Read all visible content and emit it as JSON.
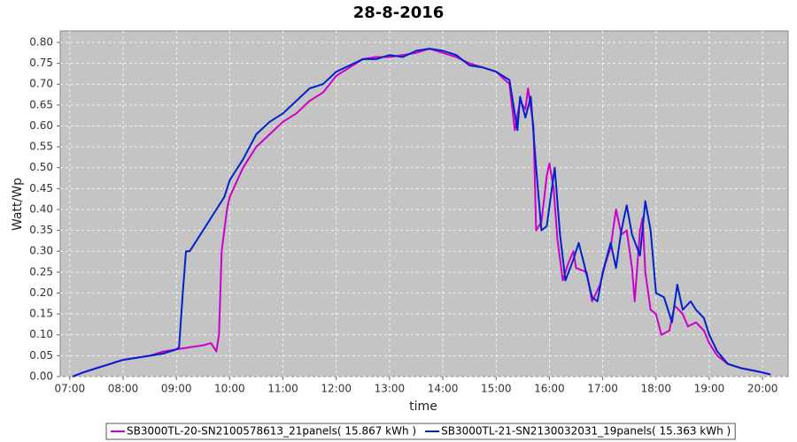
{
  "chart_data": {
    "type": "line",
    "title": "28-8-2016",
    "x_label": "time",
    "y_label": "Watt/Wp",
    "xlim": [
      6.82,
      20.48
    ],
    "ylim": [
      0,
      0.8275
    ],
    "xticks": [
      {
        "value": 7,
        "label": "07:00"
      },
      {
        "value": 8,
        "label": "08:00"
      },
      {
        "value": 9,
        "label": "09:00"
      },
      {
        "value": 10,
        "label": "10:00"
      },
      {
        "value": 11,
        "label": "11:00"
      },
      {
        "value": 12,
        "label": "12:00"
      },
      {
        "value": 13,
        "label": "13:00"
      },
      {
        "value": 14,
        "label": "14:00"
      },
      {
        "value": 15,
        "label": "15:00"
      },
      {
        "value": 16,
        "label": "16:00"
      },
      {
        "value": 17,
        "label": "17:00"
      },
      {
        "value": 18,
        "label": "18:00"
      },
      {
        "value": 19,
        "label": "19:00"
      },
      {
        "value": 20,
        "label": "20:00"
      }
    ],
    "yticks": [
      {
        "value": 0,
        "label": "0.00"
      },
      {
        "value": 0.05,
        "label": "0.05"
      },
      {
        "value": 0.1,
        "label": "0.10"
      },
      {
        "value": 0.15,
        "label": "0.15"
      },
      {
        "value": 0.2,
        "label": "0.20"
      },
      {
        "value": 0.25,
        "label": "0.25"
      },
      {
        "value": 0.3,
        "label": "0.30"
      },
      {
        "value": 0.35,
        "label": "0.35"
      },
      {
        "value": 0.4,
        "label": "0.40"
      },
      {
        "value": 0.45,
        "label": "0.45"
      },
      {
        "value": 0.5,
        "label": "0.50"
      },
      {
        "value": 0.55,
        "label": "0.55"
      },
      {
        "value": 0.6,
        "label": "0.60"
      },
      {
        "value": 0.65,
        "label": "0.65"
      },
      {
        "value": 0.7,
        "label": "0.70"
      },
      {
        "value": 0.75,
        "label": "0.75"
      },
      {
        "value": 0.8,
        "label": "0.80"
      }
    ],
    "grid": true,
    "legend": "bottom",
    "series": [
      {
        "name": "SB3000TL-20-SN2100578613_21panels( 15.867 kWh )",
        "color": "#cc00cc",
        "x": [
          7.05,
          7.25,
          7.5,
          7.75,
          8.0,
          8.25,
          8.5,
          8.75,
          9.0,
          9.25,
          9.5,
          9.65,
          9.75,
          9.8,
          9.85,
          9.95,
          10.0,
          10.25,
          10.5,
          10.75,
          11.0,
          11.25,
          11.5,
          11.75,
          12.0,
          12.25,
          12.5,
          12.75,
          13.0,
          13.25,
          13.5,
          13.75,
          14.0,
          14.25,
          14.5,
          14.75,
          15.0,
          15.25,
          15.35,
          15.45,
          15.55,
          15.6,
          15.7,
          15.75,
          15.85,
          15.95,
          16.0,
          16.08,
          16.15,
          16.25,
          16.35,
          16.45,
          16.5,
          16.7,
          16.8,
          16.95,
          17.05,
          17.15,
          17.25,
          17.35,
          17.45,
          17.55,
          17.6,
          17.7,
          17.75,
          17.8,
          17.9,
          18.0,
          18.1,
          18.25,
          18.35,
          18.5,
          18.6,
          18.75,
          18.9,
          19.0,
          19.15,
          19.35,
          19.6,
          19.8,
          20.0,
          20.15
        ],
        "values": [
          0.0,
          0.01,
          0.02,
          0.03,
          0.04,
          0.045,
          0.05,
          0.06,
          0.065,
          0.07,
          0.075,
          0.08,
          0.06,
          0.1,
          0.3,
          0.4,
          0.43,
          0.5,
          0.55,
          0.58,
          0.61,
          0.63,
          0.66,
          0.68,
          0.72,
          0.74,
          0.76,
          0.765,
          0.765,
          0.77,
          0.775,
          0.785,
          0.775,
          0.765,
          0.75,
          0.74,
          0.73,
          0.7,
          0.59,
          0.66,
          0.64,
          0.69,
          0.6,
          0.35,
          0.37,
          0.48,
          0.51,
          0.45,
          0.33,
          0.23,
          0.27,
          0.3,
          0.26,
          0.25,
          0.18,
          0.22,
          0.27,
          0.31,
          0.4,
          0.34,
          0.35,
          0.26,
          0.18,
          0.35,
          0.38,
          0.25,
          0.16,
          0.15,
          0.1,
          0.11,
          0.17,
          0.15,
          0.12,
          0.13,
          0.11,
          0.08,
          0.05,
          0.03,
          0.02,
          0.015,
          0.01,
          0.005
        ]
      },
      {
        "name": "SB3000TL-21-SN2130032031_19panels( 15.363 kWh )",
        "color": "#0022cc",
        "x": [
          7.05,
          7.25,
          7.5,
          7.75,
          8.0,
          8.25,
          8.5,
          8.75,
          9.0,
          9.05,
          9.12,
          9.18,
          9.25,
          9.4,
          9.6,
          9.75,
          9.9,
          10.0,
          10.25,
          10.5,
          10.75,
          11.0,
          11.25,
          11.5,
          11.75,
          12.0,
          12.25,
          12.5,
          12.75,
          13.0,
          13.25,
          13.5,
          13.75,
          14.0,
          14.25,
          14.5,
          14.75,
          15.0,
          15.25,
          15.4,
          15.45,
          15.55,
          15.65,
          15.75,
          15.85,
          15.95,
          16.1,
          16.2,
          16.3,
          16.45,
          16.55,
          16.65,
          16.8,
          16.9,
          17.0,
          17.15,
          17.25,
          17.35,
          17.45,
          17.55,
          17.7,
          17.8,
          17.9,
          18.0,
          18.15,
          18.3,
          18.4,
          18.5,
          18.65,
          18.75,
          18.9,
          19.0,
          19.15,
          19.35,
          19.6,
          19.8,
          20.0,
          20.15
        ],
        "values": [
          0.0,
          0.01,
          0.02,
          0.03,
          0.04,
          0.045,
          0.05,
          0.055,
          0.065,
          0.07,
          0.2,
          0.3,
          0.3,
          0.33,
          0.37,
          0.4,
          0.43,
          0.47,
          0.52,
          0.58,
          0.61,
          0.63,
          0.66,
          0.69,
          0.7,
          0.73,
          0.745,
          0.76,
          0.76,
          0.77,
          0.765,
          0.78,
          0.785,
          0.78,
          0.77,
          0.745,
          0.74,
          0.73,
          0.71,
          0.59,
          0.67,
          0.62,
          0.67,
          0.5,
          0.35,
          0.36,
          0.5,
          0.34,
          0.23,
          0.28,
          0.32,
          0.27,
          0.19,
          0.18,
          0.25,
          0.32,
          0.26,
          0.35,
          0.41,
          0.34,
          0.29,
          0.42,
          0.35,
          0.2,
          0.19,
          0.13,
          0.22,
          0.16,
          0.18,
          0.16,
          0.14,
          0.1,
          0.06,
          0.03,
          0.02,
          0.015,
          0.01,
          0.005
        ]
      }
    ]
  }
}
